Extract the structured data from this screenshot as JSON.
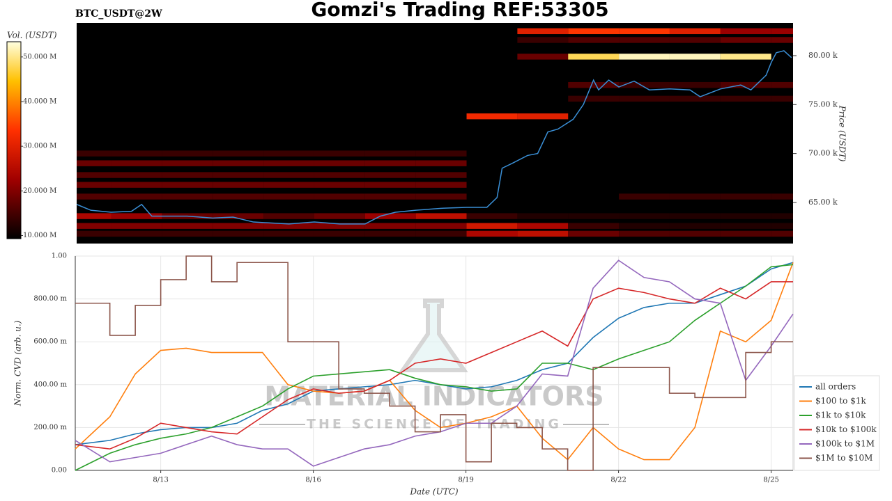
{
  "title": "Gomzi's Trading REF:53305",
  "watermark": {
    "name": "MATERIAL INDICATORS",
    "tagline": "THE SCIENCE OF TRADING"
  },
  "chart_data": [
    {
      "type": "heatmap",
      "subtitle": "BTC_USDT@2W",
      "ylabel": "Price (USDT)",
      "xlim": [
        11.32,
        25.43
      ],
      "ylim": [
        60.8,
        83.34
      ],
      "yticks": [
        {
          "value": 65,
          "label": "65.00 k"
        },
        {
          "value": 70,
          "label": "70.00 k"
        },
        {
          "value": 75,
          "label": "75.00 k"
        },
        {
          "value": 80,
          "label": "80.00 k"
        }
      ],
      "colorbar": {
        "label": "Vol. (USDT)",
        "lim": [
          9.3,
          53.4
        ],
        "ticks": [
          {
            "value": 10,
            "label": "10.000 M"
          },
          {
            "value": 20,
            "label": "20.000 M"
          },
          {
            "value": 30,
            "label": "30.000 M"
          },
          {
            "value": 40,
            "label": "40.000 M"
          },
          {
            "value": 50,
            "label": "50.000 M"
          }
        ]
      },
      "bins": [
        11.32,
        12,
        13,
        14,
        15,
        16,
        17,
        18,
        19,
        20,
        21,
        22,
        23,
        24,
        25,
        25.43
      ],
      "levels": [
        61.8,
        62.6,
        63.6,
        65.6,
        66.8,
        67.8,
        69.0,
        70.0,
        73.8,
        75.6,
        77.0,
        79.9,
        81.6,
        82.5
      ],
      "z": [
        [
          14,
          14,
          14,
          14,
          14,
          14,
          14,
          14,
          24,
          26,
          18,
          16,
          16,
          16,
          16
        ],
        [
          20,
          20,
          20,
          20,
          20,
          20,
          20,
          20,
          28,
          24,
          14,
          12,
          12,
          12,
          12
        ],
        [
          24,
          22,
          18,
          18,
          16,
          18,
          22,
          26,
          14,
          12,
          12,
          12,
          12,
          12,
          12
        ],
        [
          16,
          16,
          16,
          16,
          16,
          16,
          16,
          16,
          null,
          null,
          null,
          14,
          14,
          14,
          14
        ],
        [
          18,
          18,
          18,
          18,
          18,
          18,
          18,
          18,
          null,
          null,
          null,
          null,
          null,
          null,
          null
        ],
        [
          16,
          16,
          16,
          16,
          16,
          16,
          16,
          16,
          null,
          null,
          null,
          null,
          null,
          null,
          null
        ],
        [
          18,
          18,
          18,
          18,
          18,
          18,
          18,
          18,
          null,
          null,
          null,
          null,
          null,
          null,
          null
        ],
        [
          14,
          14,
          14,
          14,
          14,
          14,
          14,
          14,
          null,
          null,
          null,
          null,
          null,
          null,
          null
        ],
        [
          null,
          null,
          null,
          null,
          null,
          null,
          null,
          null,
          32,
          30,
          null,
          null,
          null,
          null,
          null
        ],
        [
          null,
          null,
          null,
          null,
          null,
          null,
          null,
          null,
          null,
          null,
          14,
          14,
          14,
          14,
          14
        ],
        [
          null,
          null,
          null,
          null,
          null,
          null,
          null,
          null,
          null,
          null,
          16,
          14,
          14,
          16,
          16
        ],
        [
          null,
          null,
          null,
          null,
          null,
          null,
          null,
          null,
          null,
          18,
          48,
          52,
          52,
          50,
          null
        ],
        [
          null,
          null,
          null,
          null,
          null,
          null,
          null,
          null,
          null,
          14,
          16,
          16,
          16,
          18,
          18
        ],
        [
          null,
          null,
          null,
          null,
          null,
          null,
          null,
          null,
          null,
          30,
          34,
          34,
          30,
          22,
          22
        ]
      ],
      "line": {
        "color": "#3a8fd6",
        "x": [
          11.32,
          11.6,
          12.0,
          12.4,
          12.6,
          12.8,
          13.5,
          14.0,
          14.4,
          14.8,
          15.5,
          16.0,
          16.5,
          17.0,
          17.3,
          17.6,
          18.0,
          18.5,
          19.0,
          19.4,
          19.6,
          19.7,
          19.9,
          20.2,
          20.4,
          20.6,
          20.8,
          21.1,
          21.3,
          21.5,
          21.6,
          21.8,
          22.0,
          22.3,
          22.6,
          23.0,
          23.4,
          23.6,
          24.0,
          24.4,
          24.6,
          24.9,
          25.0,
          25.1,
          25.25,
          25.4
        ],
        "values": [
          64.8,
          64.2,
          64.0,
          64.1,
          64.8,
          63.6,
          63.6,
          63.4,
          63.5,
          63.0,
          62.8,
          63.0,
          62.8,
          62.8,
          63.6,
          64.0,
          64.2,
          64.4,
          64.5,
          64.5,
          65.5,
          68.5,
          69.0,
          69.8,
          70.0,
          72.2,
          72.5,
          73.5,
          75.0,
          77.5,
          76.5,
          77.5,
          76.8,
          77.4,
          76.5,
          76.6,
          76.5,
          75.8,
          76.6,
          77.0,
          76.5,
          78.0,
          79.3,
          80.3,
          80.5,
          79.8
        ]
      }
    },
    {
      "type": "line",
      "xlabel": "Date (UTC)",
      "ylabel": "Norm. CVD (arb. u.)",
      "grid": true,
      "legend": "lower right",
      "xlim": [
        11.32,
        25.43
      ],
      "ylim": [
        0,
        1
      ],
      "xticks": [
        {
          "value": 13,
          "label": "8/13"
        },
        {
          "value": 16,
          "label": "8/16"
        },
        {
          "value": 19,
          "label": "8/19"
        },
        {
          "value": 22,
          "label": "8/22"
        },
        {
          "value": 25,
          "label": "8/25"
        }
      ],
      "yticks": [
        {
          "value": 0,
          "label": "0.00"
        },
        {
          "value": 0.2,
          "label": "200.00 m"
        },
        {
          "value": 0.4,
          "label": "400.00 m"
        },
        {
          "value": 0.6,
          "label": "600.00 m"
        },
        {
          "value": 0.8,
          "label": "800.00 m"
        },
        {
          "value": 1,
          "label": "1.00"
        }
      ],
      "x": [
        11.32,
        12,
        12.5,
        13,
        13.5,
        14,
        14.5,
        15,
        15.5,
        16,
        16.5,
        17,
        17.5,
        18,
        18.5,
        19,
        19.5,
        20,
        20.5,
        21,
        21.5,
        22,
        22.5,
        23,
        23.5,
        24,
        24.5,
        25,
        25.43
      ],
      "series": [
        {
          "name": "all orders",
          "color": "#1f77b4",
          "values": [
            0.12,
            0.14,
            0.17,
            0.19,
            0.2,
            0.2,
            0.22,
            0.28,
            0.31,
            0.37,
            0.38,
            0.39,
            0.4,
            0.42,
            0.4,
            0.38,
            0.39,
            0.42,
            0.47,
            0.5,
            0.62,
            0.71,
            0.76,
            0.78,
            0.78,
            0.82,
            0.86,
            0.94,
            0.97
          ]
        },
        {
          "name": "$100 to $1k",
          "color": "#ff7f0e",
          "values": [
            0.1,
            0.25,
            0.45,
            0.56,
            0.57,
            0.55,
            0.55,
            0.55,
            0.4,
            0.37,
            0.36,
            0.37,
            0.42,
            0.28,
            0.2,
            0.22,
            0.25,
            0.3,
            0.15,
            0.05,
            0.2,
            0.1,
            0.05,
            0.05,
            0.2,
            0.65,
            0.6,
            0.7,
            0.97
          ]
        },
        {
          "name": "$1k to $10k",
          "color": "#2ca02c",
          "values": [
            0.0,
            0.08,
            0.12,
            0.15,
            0.17,
            0.2,
            0.25,
            0.3,
            0.38,
            0.44,
            0.45,
            0.46,
            0.47,
            0.43,
            0.4,
            0.39,
            0.37,
            0.38,
            0.5,
            0.5,
            0.47,
            0.52,
            0.56,
            0.6,
            0.7,
            0.78,
            0.86,
            0.95,
            0.96
          ]
        },
        {
          "name": "$10k to $100k",
          "color": "#d62728",
          "values": [
            0.12,
            0.1,
            0.15,
            0.22,
            0.2,
            0.18,
            0.17,
            0.25,
            0.33,
            0.38,
            0.36,
            0.37,
            0.42,
            0.5,
            0.52,
            0.5,
            0.55,
            0.6,
            0.65,
            0.58,
            0.8,
            0.85,
            0.83,
            0.8,
            0.78,
            0.85,
            0.8,
            0.88,
            0.88
          ]
        },
        {
          "name": "$100k to $1M",
          "color": "#9467bd",
          "values": [
            0.14,
            0.04,
            0.06,
            0.08,
            0.12,
            0.16,
            0.12,
            0.1,
            0.1,
            0.02,
            0.06,
            0.1,
            0.12,
            0.16,
            0.18,
            0.22,
            0.22,
            0.3,
            0.45,
            0.44,
            0.85,
            0.98,
            0.9,
            0.88,
            0.8,
            0.78,
            0.42,
            0.58,
            0.73
          ]
        },
        {
          "name": "$1M to $10M",
          "color": "#8c564b",
          "step": "post",
          "values": [
            0.78,
            0.63,
            0.77,
            0.89,
            1.0,
            0.88,
            0.97,
            0.97,
            0.6,
            0.6,
            0.38,
            0.36,
            0.3,
            0.18,
            0.26,
            0.04,
            0.22,
            0.2,
            0.1,
            0.0,
            0.48,
            0.48,
            0.48,
            0.36,
            0.34,
            0.34,
            0.55,
            0.6,
            0.6
          ]
        }
      ]
    }
  ]
}
